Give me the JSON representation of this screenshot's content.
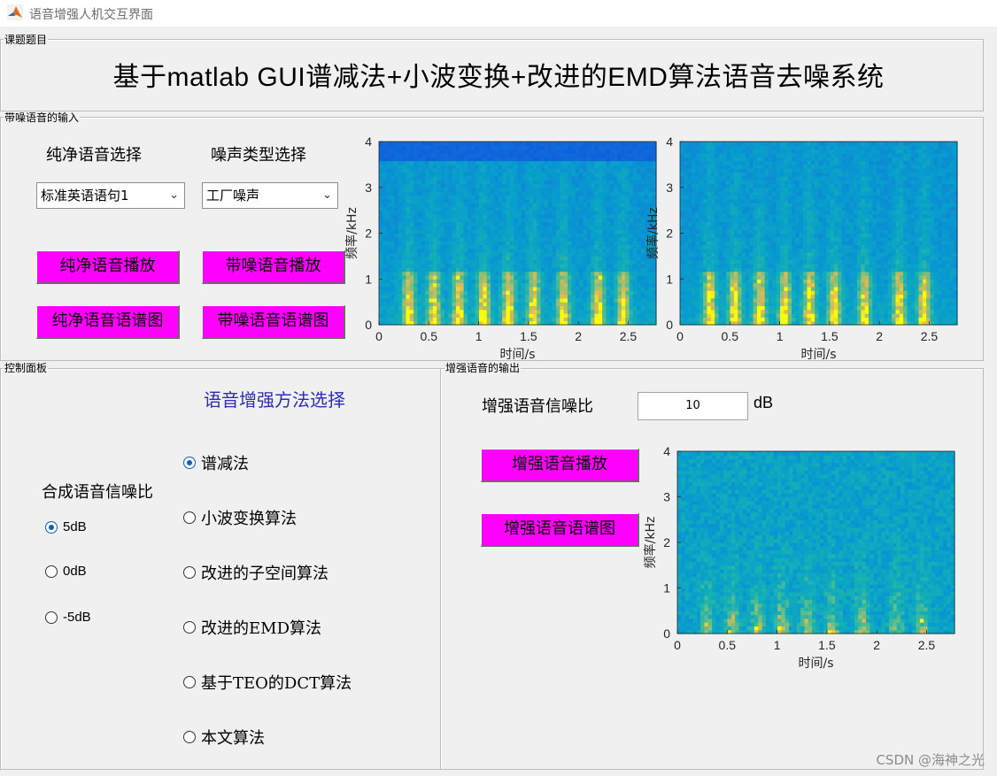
{
  "window": {
    "title": "语音增强人机交互界面"
  },
  "topic": {
    "label": "课题题目",
    "title": "基于matlab GUI谱减法+小波变换+改进的EMD算法语音去噪系统"
  },
  "input_panel": {
    "label": "带噪语音的输入",
    "clean_label": "纯净语音选择",
    "noise_label": "噪声类型选择",
    "clean_select": "标准英语语句1",
    "noise_select": "工厂噪声",
    "btn_clean_play": "纯净语音播放",
    "btn_noisy_play": "带噪语音播放",
    "btn_clean_spec": "纯净语音语谱图",
    "btn_noisy_spec": "带噪语音语谱图"
  },
  "control_panel": {
    "label": "控制面板",
    "method_title": "语音增强方法选择",
    "snr_title": "合成语音信噪比",
    "methods": [
      "谱减法",
      "小波变换算法",
      "改进的子空间算法",
      "改进的EMD算法",
      "基于TEO的DCT算法",
      "本文算法"
    ],
    "methods_selected": 0,
    "snr_options": [
      "5dB",
      "0dB",
      "-5dB"
    ],
    "snr_selected": 0
  },
  "output_panel": {
    "label": "增强语音的输出",
    "snr_label": "增强语音信噪比",
    "snr_value": "10",
    "snr_unit": "dB",
    "btn_play": "增强语音播放",
    "btn_spec": "增强语音语谱图"
  },
  "spectrogram_axes": {
    "ylabel": "频率/kHz",
    "xlabel": "时间/s",
    "xticks": [
      "0",
      "0.5",
      "1",
      "1.5",
      "2",
      "2.5"
    ],
    "yticks": [
      "0",
      "1",
      "2",
      "3",
      "4"
    ],
    "xlim": [
      0,
      2.78
    ],
    "ylim": [
      0,
      4
    ]
  },
  "colors": {
    "button": "#ff00ff",
    "title_blue": "#2d2db8",
    "radio_blue": "#0f5fb5"
  },
  "watermark": "CSDN @海神之光"
}
